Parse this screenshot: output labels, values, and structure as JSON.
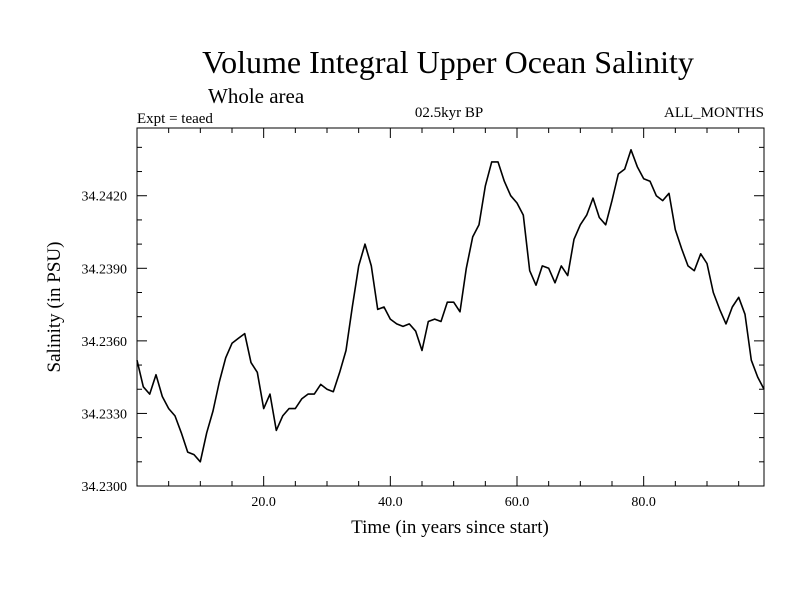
{
  "chart_data": {
    "type": "line",
    "title": "Volume Integral Upper Ocean Salinity",
    "subtitle": "Whole area",
    "experiment": "Expt = teaed",
    "period": "02.5kyr BP",
    "months": "ALL_MONTHS",
    "xlabel": "Time (in years since start)",
    "ylabel": "Salinity (in PSU)",
    "xlim": [
      0,
      99
    ],
    "ylim": [
      34.23,
      34.2448
    ],
    "xticks": [
      20,
      40,
      60,
      80
    ],
    "xtick_labels": [
      "20.0",
      "40.0",
      "60.0",
      "80.0"
    ],
    "yticks": [
      34.23,
      34.233,
      34.236,
      34.239,
      34.242
    ],
    "ytick_labels": [
      "34.2300",
      "34.2330",
      "34.2360",
      "34.2390",
      "34.2420"
    ],
    "grid": false,
    "series": [
      {
        "name": "Salinity",
        "x": [
          0,
          1,
          2,
          3,
          4,
          5,
          6,
          7,
          8,
          9,
          10,
          11,
          12,
          13,
          14,
          15,
          16,
          17,
          18,
          19,
          20,
          21,
          22,
          23,
          24,
          25,
          26,
          27,
          28,
          29,
          30,
          31,
          32,
          33,
          34,
          35,
          36,
          37,
          38,
          39,
          40,
          41,
          42,
          43,
          44,
          45,
          46,
          47,
          48,
          49,
          50,
          51,
          52,
          53,
          54,
          55,
          56,
          57,
          58,
          59,
          60,
          61,
          62,
          63,
          64,
          65,
          66,
          67,
          68,
          69,
          70,
          71,
          72,
          73,
          74,
          75,
          76,
          77,
          78,
          79,
          80,
          81,
          82,
          83,
          84,
          85,
          86,
          87,
          88,
          89,
          90,
          91,
          92,
          93,
          94,
          95,
          96,
          97,
          98,
          99
        ],
        "values": [
          34.2352,
          34.2341,
          34.2338,
          34.2346,
          34.2337,
          34.2332,
          34.2329,
          34.2322,
          34.2314,
          34.2313,
          34.231,
          34.2322,
          34.2331,
          34.2343,
          34.2353,
          34.2359,
          34.2361,
          34.2363,
          34.2351,
          34.2347,
          34.2332,
          34.2338,
          34.2323,
          34.2329,
          34.2332,
          34.2332,
          34.2336,
          34.2338,
          34.2338,
          34.2342,
          34.234,
          34.2339,
          34.2347,
          34.2356,
          34.2374,
          34.2391,
          34.24,
          34.2391,
          34.2373,
          34.2374,
          34.2369,
          34.2367,
          34.2366,
          34.2367,
          34.2364,
          34.2356,
          34.2368,
          34.2369,
          34.2368,
          34.2376,
          34.2376,
          34.2372,
          34.239,
          34.2403,
          34.2408,
          34.2424,
          34.2434,
          34.2434,
          34.2426,
          34.242,
          34.2417,
          34.2412,
          34.2389,
          34.2383,
          34.2391,
          34.239,
          34.2384,
          34.2391,
          34.2387,
          34.2402,
          34.2408,
          34.2412,
          34.2419,
          34.2411,
          34.2408,
          34.2418,
          34.2429,
          34.2431,
          34.2439,
          34.2432,
          34.2427,
          34.2426,
          34.242,
          34.2418,
          34.2421,
          34.2406,
          34.2398,
          34.2391,
          34.2389,
          34.2396,
          34.2392,
          34.238,
          34.2373,
          34.2367,
          34.2374,
          34.2378,
          34.2371,
          34.2352,
          34.2345,
          34.234
        ]
      }
    ]
  }
}
